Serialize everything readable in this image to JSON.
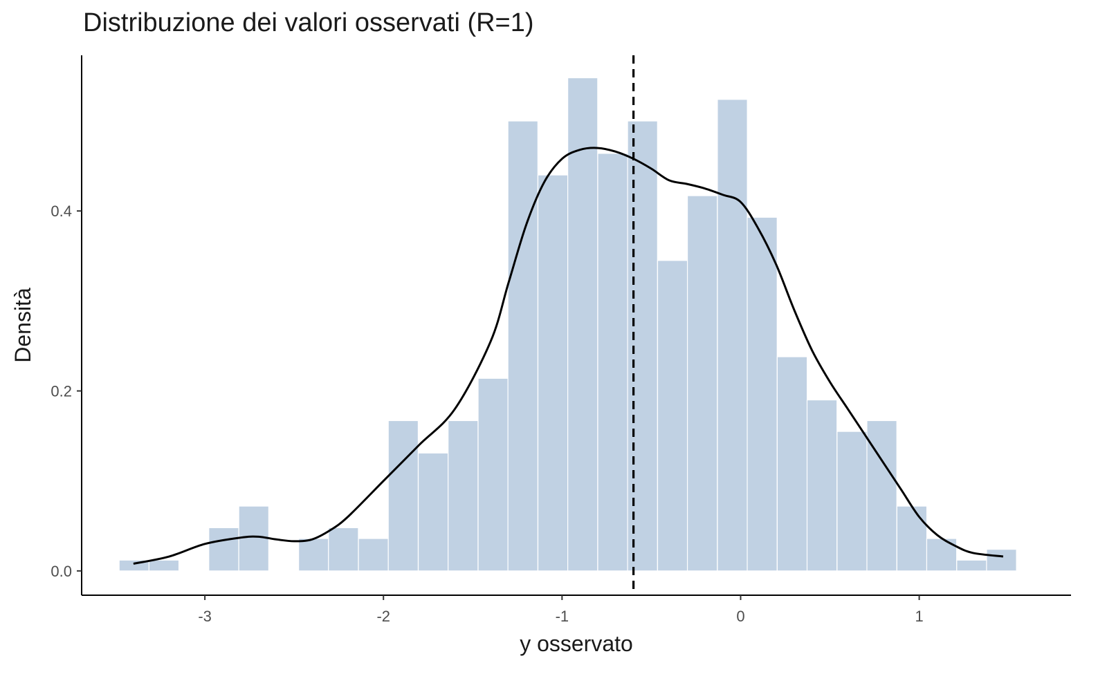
{
  "chart_data": {
    "type": "bar",
    "title": "Distribuzione dei valori osservati (R=1)",
    "xlabel": "y osservato",
    "ylabel": "Densità",
    "xlim": [
      -3.69,
      1.85
    ],
    "ylim": [
      -0.027,
      0.573
    ],
    "xticks": [
      -3,
      -2,
      -1,
      0,
      1
    ],
    "xtick_labels": [
      "-3",
      "-2",
      "-1",
      "0",
      "1"
    ],
    "yticks": [
      0.0,
      0.2,
      0.4
    ],
    "ytick_labels": [
      "0.0",
      "0.2",
      "0.4"
    ],
    "bin_width": 0.1675,
    "bins": [
      {
        "x0": -3.48,
        "density": 0.012
      },
      {
        "x0": -3.313,
        "density": 0.012
      },
      {
        "x0": -3.145,
        "density": 0.0
      },
      {
        "x0": -2.978,
        "density": 0.048
      },
      {
        "x0": -2.81,
        "density": 0.072
      },
      {
        "x0": -2.643,
        "density": 0.0
      },
      {
        "x0": -2.475,
        "density": 0.036
      },
      {
        "x0": -2.308,
        "density": 0.048
      },
      {
        "x0": -2.14,
        "density": 0.036
      },
      {
        "x0": -1.973,
        "density": 0.167
      },
      {
        "x0": -1.805,
        "density": 0.131
      },
      {
        "x0": -1.638,
        "density": 0.167
      },
      {
        "x0": -1.47,
        "density": 0.214
      },
      {
        "x0": -1.303,
        "density": 0.5
      },
      {
        "x0": -1.135,
        "density": 0.44
      },
      {
        "x0": -0.968,
        "density": 0.548
      },
      {
        "x0": -0.8,
        "density": 0.464
      },
      {
        "x0": -0.633,
        "density": 0.5
      },
      {
        "x0": -0.465,
        "density": 0.345
      },
      {
        "x0": -0.298,
        "density": 0.417
      },
      {
        "x0": -0.13,
        "density": 0.524
      },
      {
        "x0": 0.037,
        "density": 0.393
      },
      {
        "x0": 0.205,
        "density": 0.238
      },
      {
        "x0": 0.372,
        "density": 0.19
      },
      {
        "x0": 0.54,
        "density": 0.155
      },
      {
        "x0": 0.707,
        "density": 0.167
      },
      {
        "x0": 0.875,
        "density": 0.072
      },
      {
        "x0": 1.042,
        "density": 0.036
      },
      {
        "x0": 1.21,
        "density": 0.012
      },
      {
        "x0": 1.377,
        "density": 0.024
      }
    ],
    "density_curve": {
      "x": [
        -3.4,
        -3.2,
        -3.0,
        -2.8,
        -2.7,
        -2.6,
        -2.5,
        -2.4,
        -2.3,
        -2.2,
        -2.0,
        -1.8,
        -1.6,
        -1.4,
        -1.3,
        -1.2,
        -1.1,
        -1.0,
        -0.9,
        -0.8,
        -0.7,
        -0.6,
        -0.5,
        -0.4,
        -0.3,
        -0.2,
        -0.1,
        0.0,
        0.1,
        0.2,
        0.3,
        0.4,
        0.5,
        0.6,
        0.7,
        0.8,
        0.9,
        1.0,
        1.1,
        1.2,
        1.3,
        1.47
      ],
      "y": [
        0.008,
        0.016,
        0.03,
        0.037,
        0.038,
        0.035,
        0.033,
        0.035,
        0.045,
        0.06,
        0.1,
        0.14,
        0.18,
        0.255,
        0.32,
        0.385,
        0.432,
        0.458,
        0.468,
        0.47,
        0.466,
        0.458,
        0.447,
        0.434,
        0.43,
        0.425,
        0.418,
        0.41,
        0.38,
        0.34,
        0.29,
        0.245,
        0.21,
        0.18,
        0.15,
        0.12,
        0.09,
        0.06,
        0.04,
        0.028,
        0.02,
        0.016
      ]
    },
    "vline": {
      "x": -0.6,
      "style": "dashed"
    },
    "bar_color": "#c0d1e3",
    "bar_edge_color": "#ffffff",
    "curve_color": "#000000",
    "grid": false,
    "legend": "none"
  }
}
